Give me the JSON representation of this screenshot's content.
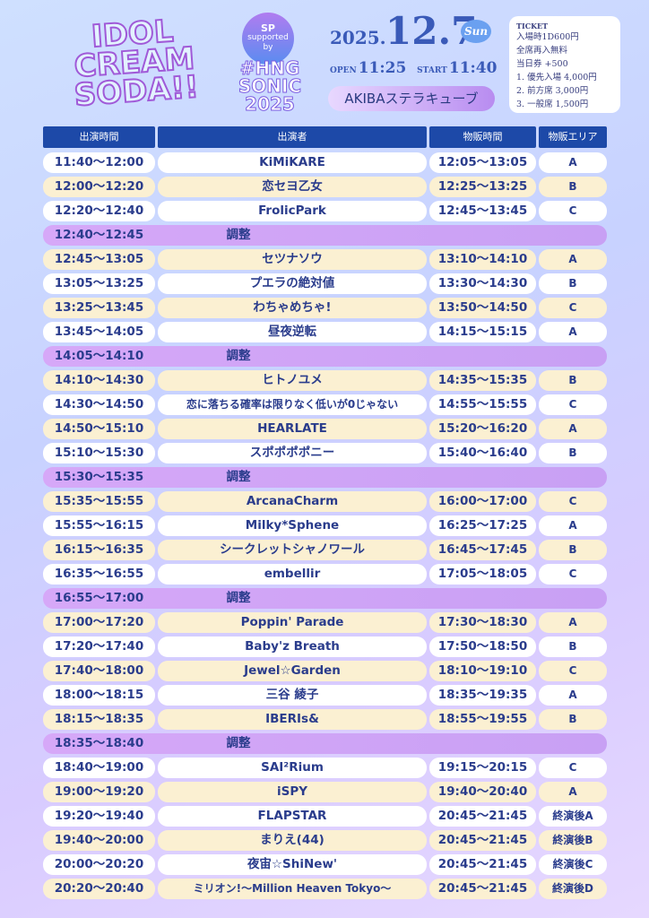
{
  "header": {
    "logo": [
      "IDOL",
      "CREAM",
      "SODA!!"
    ],
    "sponsor_badge": [
      "SP",
      "supported by"
    ],
    "sponsor": [
      "#HNG",
      "SONIC",
      "2025"
    ],
    "year": "2025.",
    "date": "12.7",
    "weekday": "Sun",
    "open_label": "OPEN",
    "open_time": "11:25",
    "start_label": "START",
    "start_time": "11:40",
    "venue": "AKIBAステラキューブ",
    "ticket_title": "TICKET",
    "ticket_lines": [
      "入場時1D600円",
      "全席再入無料",
      "当日券 +500",
      "1. 優先入場 4,000円",
      "2. 前方席 3,000円",
      "3. 一般席 1,500円"
    ]
  },
  "table": {
    "columns": [
      "出演時間",
      "出演者",
      "物販時間",
      "物販エリア"
    ],
    "rows": [
      [
        "11:40～12:00",
        "KiMiKARE",
        "12:05～13:05",
        "A"
      ],
      [
        "12:00～12:20",
        "恋セヨ乙女",
        "12:25～13:25",
        "B"
      ],
      [
        "12:20～12:40",
        "FrolicPark",
        "12:45～13:45",
        "C"
      ],
      [
        "12:40～12:45",
        "調整"
      ],
      [
        "12:45～13:05",
        "セツナソウ",
        "13:10～14:10",
        "A"
      ],
      [
        "13:05～13:25",
        "プエラの絶対値",
        "13:30～14:30",
        "B"
      ],
      [
        "13:25～13:45",
        "わちゃめちゃ!",
        "13:50～14:50",
        "C"
      ],
      [
        "13:45～14:05",
        "昼夜逆転",
        "14:15～15:15",
        "A"
      ],
      [
        "14:05～14:10",
        "調整"
      ],
      [
        "14:10～14:30",
        "ヒトノユメ",
        "14:35～15:35",
        "B"
      ],
      [
        "14:30～14:50",
        "恋に落ちる確率は限りなく低いが0じゃない",
        "14:55～15:55",
        "C"
      ],
      [
        "14:50～15:10",
        "HEARLATE",
        "15:20～16:20",
        "A"
      ],
      [
        "15:10～15:30",
        "スポポポポニー",
        "15:40～16:40",
        "B"
      ],
      [
        "15:30～15:35",
        "調整"
      ],
      [
        "15:35～15:55",
        "ArcanaCharm",
        "16:00～17:00",
        "C"
      ],
      [
        "15:55～16:15",
        "Milky*Sphene",
        "16:25～17:25",
        "A"
      ],
      [
        "16:15～16:35",
        "シークレットシャノワール",
        "16:45～17:45",
        "B"
      ],
      [
        "16:35～16:55",
        "embellir",
        "17:05～18:05",
        "C"
      ],
      [
        "16:55～17:00",
        "調整"
      ],
      [
        "17:00～17:20",
        "Poppin' Parade",
        "17:30～18:30",
        "A"
      ],
      [
        "17:20～17:40",
        "Baby'z Breath",
        "17:50～18:50",
        "B"
      ],
      [
        "17:40～18:00",
        "Jewel☆Garden",
        "18:10～19:10",
        "C"
      ],
      [
        "18:00～18:15",
        "三谷 綾子",
        "18:35～19:35",
        "A"
      ],
      [
        "18:15～18:35",
        "IBERIs&",
        "18:55～19:55",
        "B"
      ],
      [
        "18:35～18:40",
        "調整"
      ],
      [
        "18:40～19:00",
        "SAI²Rium",
        "19:15～20:15",
        "C"
      ],
      [
        "19:00～19:20",
        "iSPY",
        "19:40～20:40",
        "A"
      ],
      [
        "19:20～19:40",
        "FLAPSTAR",
        "20:45～21:45",
        "終演後A"
      ],
      [
        "19:40～20:00",
        "まりえ(44)",
        "20:45～21:45",
        "終演後B"
      ],
      [
        "20:00～20:20",
        "夜宙☆ShiNew'",
        "20:45～21:45",
        "終演後C"
      ],
      [
        "20:20～20:40",
        "ミリオン!～Million Heaven Tokyo～",
        "20:45～21:45",
        "終演後D"
      ]
    ]
  }
}
